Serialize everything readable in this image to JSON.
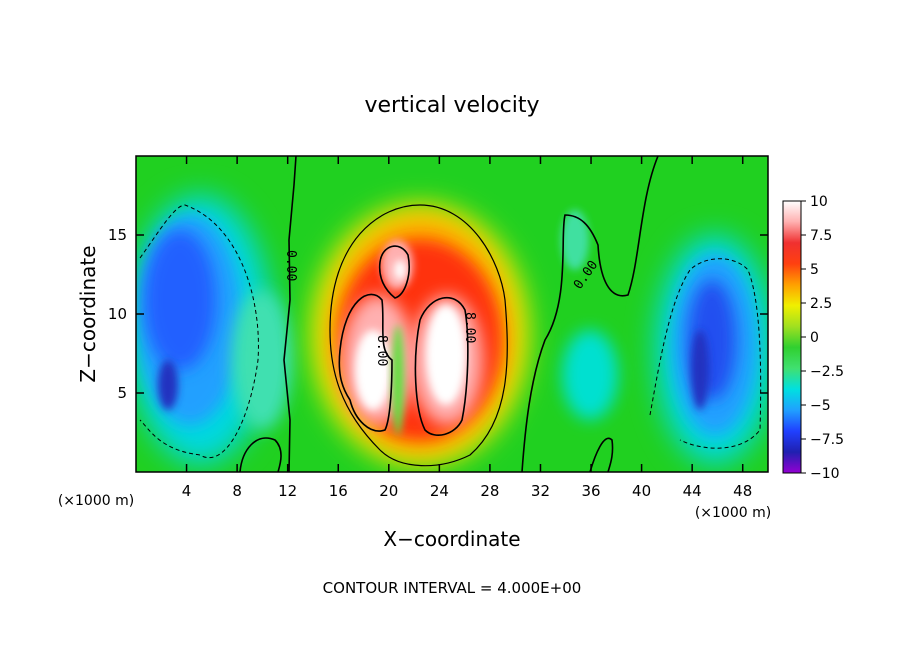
{
  "chart_data": {
    "type": "heatmap",
    "title": "vertical velocity",
    "xlabel": "X−coordinate",
    "ylabel": "Z−coordinate",
    "x_unit_label": "(×1000 m)",
    "y_unit_label": "(×1000 m)",
    "xlim": [
      0,
      50
    ],
    "ylim": [
      0,
      20
    ],
    "x_ticks": [
      4,
      8,
      12,
      16,
      20,
      24,
      28,
      32,
      36,
      40,
      44,
      48
    ],
    "y_ticks": [
      5,
      10,
      15
    ],
    "colorbar": {
      "ticks": [
        10,
        7.5,
        5,
        2.5,
        0,
        -2.5,
        -5,
        -7.5,
        -10
      ],
      "tick_labels": [
        "10",
        "7.5",
        "5",
        "2.5",
        "0",
        "−2.5",
        "−5",
        "−7.5",
        "−10"
      ],
      "range": [
        -10,
        10
      ],
      "colors": [
        "#9400d3",
        "#2020b0",
        "#2040ff",
        "#20a0ff",
        "#00e0e0",
        "#40e070",
        "#30d030",
        "#a0e020",
        "#f0f000",
        "#ffa000",
        "#ff4010",
        "#f03030",
        "#ffb0b0",
        "#ffffff"
      ]
    },
    "contour_interval": 4.0,
    "contour_labels": [
      "0.00",
      "0.00",
      "8.00",
      "8.00"
    ],
    "updrafts": [
      {
        "x": 24.2,
        "z": 7.5,
        "peak": 10.5
      },
      {
        "x": 18.6,
        "z": 6.5,
        "peak": 10
      },
      {
        "x": 20.7,
        "z": 12.2,
        "peak": 9
      }
    ],
    "downdrafts": [
      {
        "x": 4.0,
        "z": 11.0,
        "min": -7
      },
      {
        "x": 44.5,
        "z": 7.5,
        "min": -7
      }
    ],
    "footer": "CONTOUR INTERVAL = 4.000E+00"
  }
}
